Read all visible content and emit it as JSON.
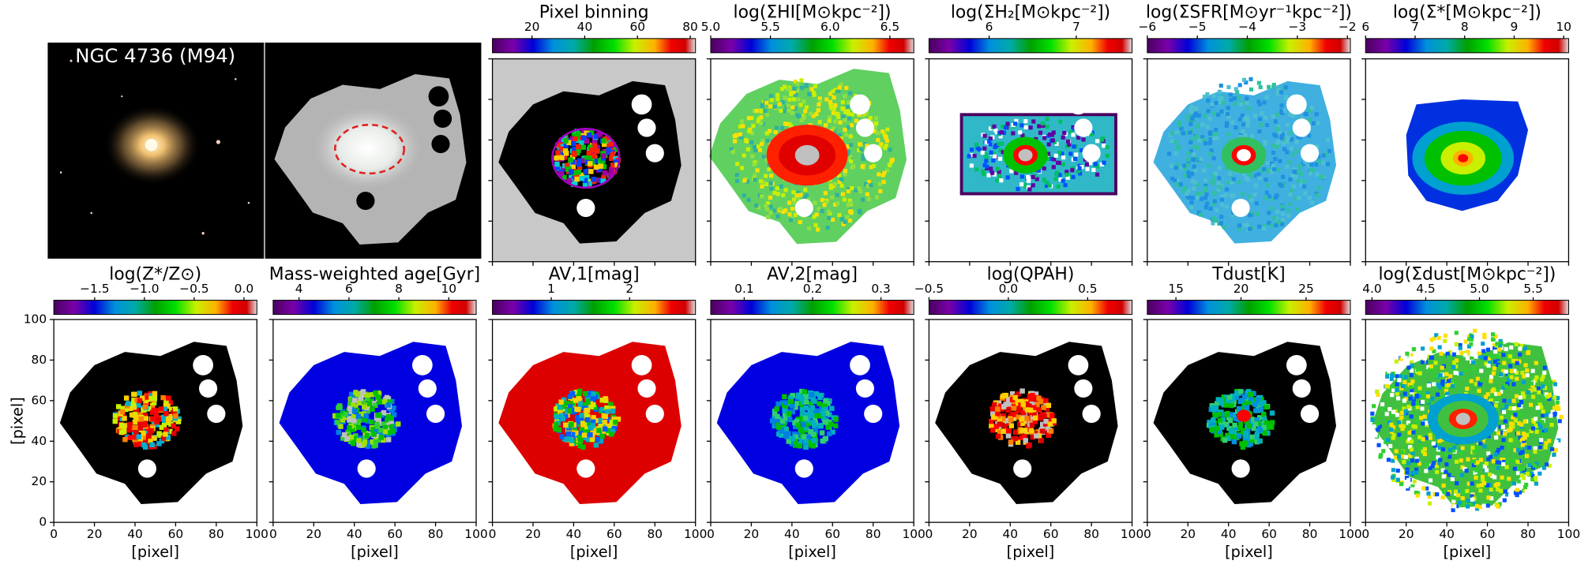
{
  "image_label": "NGC 4736 (M94)",
  "panels": [
    {
      "title": "Pixel binning",
      "cbar_lim": [
        5,
        82
      ],
      "cbar_ticks": [
        20,
        40,
        60,
        80
      ]
    },
    {
      "title": "log(ΣHI[M⊙kpc⁻²])",
      "cbar_lim": [
        5.0,
        6.7
      ],
      "cbar_ticks": [
        {
          "value": 5.0,
          "label": "5.0"
        },
        5.5,
        {
          "value": 6.0,
          "label": "6.0"
        },
        6.5
      ]
    },
    {
      "title": "log(ΣH₂[M⊙kpc⁻²])",
      "cbar_lim": [
        5.31,
        7.64
      ],
      "cbar_ticks": [
        6,
        7
      ]
    },
    {
      "title": "log(ΣSFR[M⊙yr⁻¹kpc⁻²])",
      "cbar_lim": [
        -6,
        -1.94
      ],
      "cbar_ticks": [
        {
          "value": -6,
          "label": "−6"
        },
        {
          "value": -5,
          "label": "−5"
        },
        {
          "value": -4,
          "label": "−4"
        },
        {
          "value": -3,
          "label": "−3"
        },
        {
          "value": -2,
          "label": "−2"
        }
      ]
    },
    {
      "title": "log(Σ*[M⊙kpc⁻²])",
      "cbar_lim": [
        6,
        10.1
      ],
      "cbar_ticks": [
        6,
        7,
        8,
        9,
        10
      ]
    },
    {
      "title": "log(Z*/Z⊙)",
      "cbar_lim": [
        -1.91,
        0.13
      ],
      "cbar_ticks": [
        {
          "value": -1.5,
          "label": "−1.5"
        },
        {
          "value": -1.0,
          "label": "−1.0"
        },
        {
          "value": -0.5,
          "label": "−0.5"
        },
        {
          "value": 0.0,
          "label": "0.0"
        }
      ]
    },
    {
      "title": "Mass-weighted age[Gyr]",
      "cbar_lim": [
        2.96,
        11.1
      ],
      "cbar_ticks": [
        4,
        6,
        8,
        10
      ]
    },
    {
      "title": "AV,1[mag]",
      "cbar_lim": [
        0.25,
        2.84
      ],
      "cbar_ticks": [
        1,
        2
      ]
    },
    {
      "title": "AV,2[mag]",
      "cbar_lim": [
        0.051,
        0.348
      ],
      "cbar_ticks": [
        0.1,
        0.2,
        0.3
      ]
    },
    {
      "title": "log(QPAH)",
      "cbar_lim": [
        -0.5,
        0.78
      ],
      "cbar_ticks": [
        {
          "value": -0.5,
          "label": "−0.5"
        },
        {
          "value": 0.0,
          "label": "0.0"
        },
        0.5
      ]
    },
    {
      "title": "Tdust[K]",
      "cbar_lim": [
        12.8,
        28.4
      ],
      "cbar_ticks": [
        15,
        20,
        25
      ]
    },
    {
      "title": "log(Σdust[M⊙kpc⁻²])",
      "cbar_lim": [
        3.94,
        5.83
      ],
      "cbar_ticks": [
        {
          "value": 4.0,
          "label": "4.0"
        },
        4.5,
        {
          "value": 5.0,
          "label": "5.0"
        },
        5.5
      ]
    }
  ],
  "x_axis": {
    "label": "[pixel]",
    "lim": [
      0,
      100
    ],
    "ticks": [
      0,
      20,
      40,
      60,
      80,
      100
    ]
  },
  "y_axis": {
    "label": "[pixel]",
    "lim": [
      0,
      100
    ],
    "ticks": [
      0,
      20,
      40,
      60,
      80,
      100
    ]
  }
}
